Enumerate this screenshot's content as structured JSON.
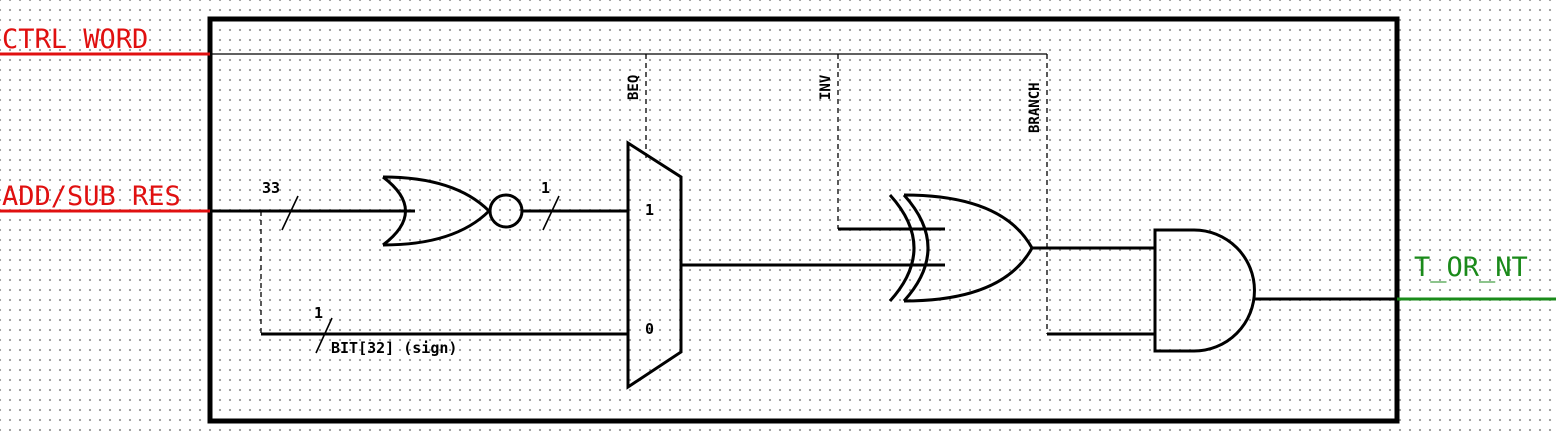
{
  "ports": {
    "ctrl_word": "CTRL WORD",
    "add_sub_res": "ADD/SUB RES",
    "output": "T_OR_NT"
  },
  "control_signals": {
    "beq": "BEQ",
    "inv": "INV",
    "branch": "BRANCH"
  },
  "bus_widths": {
    "input_bus": "33",
    "nor_out": "1",
    "sign_bit": "1"
  },
  "sign_label": "BIT[32] (sign)",
  "mux_inputs": {
    "in1": "1",
    "in0": "0"
  },
  "colors": {
    "input_port": "#e01010",
    "output_port": "#1a8a1a",
    "wire": "#000000"
  }
}
